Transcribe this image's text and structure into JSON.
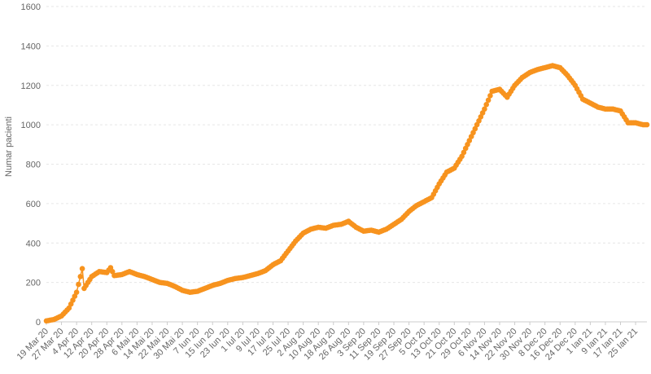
{
  "chart_data": {
    "type": "line",
    "ylabel": "Numar pacienti",
    "ylim": [
      0,
      1600
    ],
    "yticks": [
      0,
      200,
      400,
      600,
      800,
      1000,
      1200,
      1400,
      1600
    ],
    "xlim": [
      "2020-03-19",
      "2021-01-31"
    ],
    "xticks": [
      "19 Mar 20",
      "27 Mar 20",
      "4 Apr 20",
      "12 Apr 20",
      "20 Apr 20",
      "28 Apr 20",
      "6 Mai 20",
      "14 Mai 20",
      "22 Mai 20",
      "30 Mai 20",
      "7 Iun 20",
      "15 Iun 20",
      "23 Iun 20",
      "1 Iul 20",
      "9 Iul 20",
      "17 Iul 20",
      "25 Iul 20",
      "2 Aug 20",
      "10 Aug 20",
      "18 Aug 20",
      "26 Aug 20",
      "3 Sep 20",
      "11 Sep 20",
      "19 Sep 20",
      "27 Sep 20",
      "5 Oct 20",
      "13 Oct 20",
      "21 Oct 20",
      "29 Oct 20",
      "6 Nov 20",
      "14 Nov 20",
      "22 Nov 20",
      "30 Nov 20",
      "8 Dec 20",
      "16 Dec 20",
      "24 Dec 20",
      "1 Ian 21",
      "9 Ian 21",
      "17 Ian 21",
      "25 Ian 21"
    ],
    "grid": true,
    "color": "#f7931e",
    "series": [
      {
        "x": [
          "2020-03-19",
          "2020-03-23",
          "2020-03-27",
          "2020-03-31",
          "2020-04-04",
          "2020-04-07",
          "2020-04-08",
          "2020-04-12",
          "2020-04-16",
          "2020-04-20",
          "2020-04-22",
          "2020-04-24",
          "2020-04-28",
          "2020-05-02",
          "2020-05-06",
          "2020-05-10",
          "2020-05-14",
          "2020-05-18",
          "2020-05-22",
          "2020-05-26",
          "2020-05-30",
          "2020-06-03",
          "2020-06-07",
          "2020-06-11",
          "2020-06-15",
          "2020-06-19",
          "2020-06-23",
          "2020-06-27",
          "2020-07-01",
          "2020-07-05",
          "2020-07-09",
          "2020-07-13",
          "2020-07-17",
          "2020-07-21",
          "2020-07-25",
          "2020-07-29",
          "2020-08-02",
          "2020-08-06",
          "2020-08-10",
          "2020-08-14",
          "2020-08-18",
          "2020-08-22",
          "2020-08-26",
          "2020-08-30",
          "2020-09-03",
          "2020-09-07",
          "2020-09-11",
          "2020-09-15",
          "2020-09-19",
          "2020-09-23",
          "2020-09-27",
          "2020-10-01",
          "2020-10-05",
          "2020-10-09",
          "2020-10-13",
          "2020-10-17",
          "2020-10-21",
          "2020-10-25",
          "2020-10-29",
          "2020-11-02",
          "2020-11-06",
          "2020-11-10",
          "2020-11-14",
          "2020-11-18",
          "2020-11-22",
          "2020-11-26",
          "2020-11-30",
          "2020-12-04",
          "2020-12-08",
          "2020-12-12",
          "2020-12-16",
          "2020-12-20",
          "2020-12-24",
          "2020-12-28",
          "2021-01-01",
          "2021-01-05",
          "2021-01-09",
          "2021-01-13",
          "2021-01-17",
          "2021-01-21",
          "2021-01-25",
          "2021-01-29",
          "2021-01-31"
        ],
        "y": [
          5,
          12,
          30,
          70,
          150,
          270,
          170,
          230,
          255,
          250,
          275,
          235,
          240,
          255,
          240,
          230,
          215,
          200,
          195,
          180,
          160,
          150,
          155,
          170,
          185,
          195,
          210,
          220,
          225,
          235,
          245,
          260,
          290,
          310,
          360,
          410,
          450,
          470,
          480,
          475,
          490,
          495,
          510,
          480,
          460,
          465,
          455,
          470,
          495,
          520,
          560,
          590,
          610,
          630,
          700,
          760,
          780,
          840,
          920,
          1000,
          1080,
          1170,
          1180,
          1140,
          1200,
          1240,
          1265,
          1280,
          1290,
          1300,
          1290,
          1250,
          1200,
          1130,
          1110,
          1090,
          1080,
          1080,
          1070,
          1010,
          1010,
          1000,
          1000
        ]
      }
    ]
  }
}
